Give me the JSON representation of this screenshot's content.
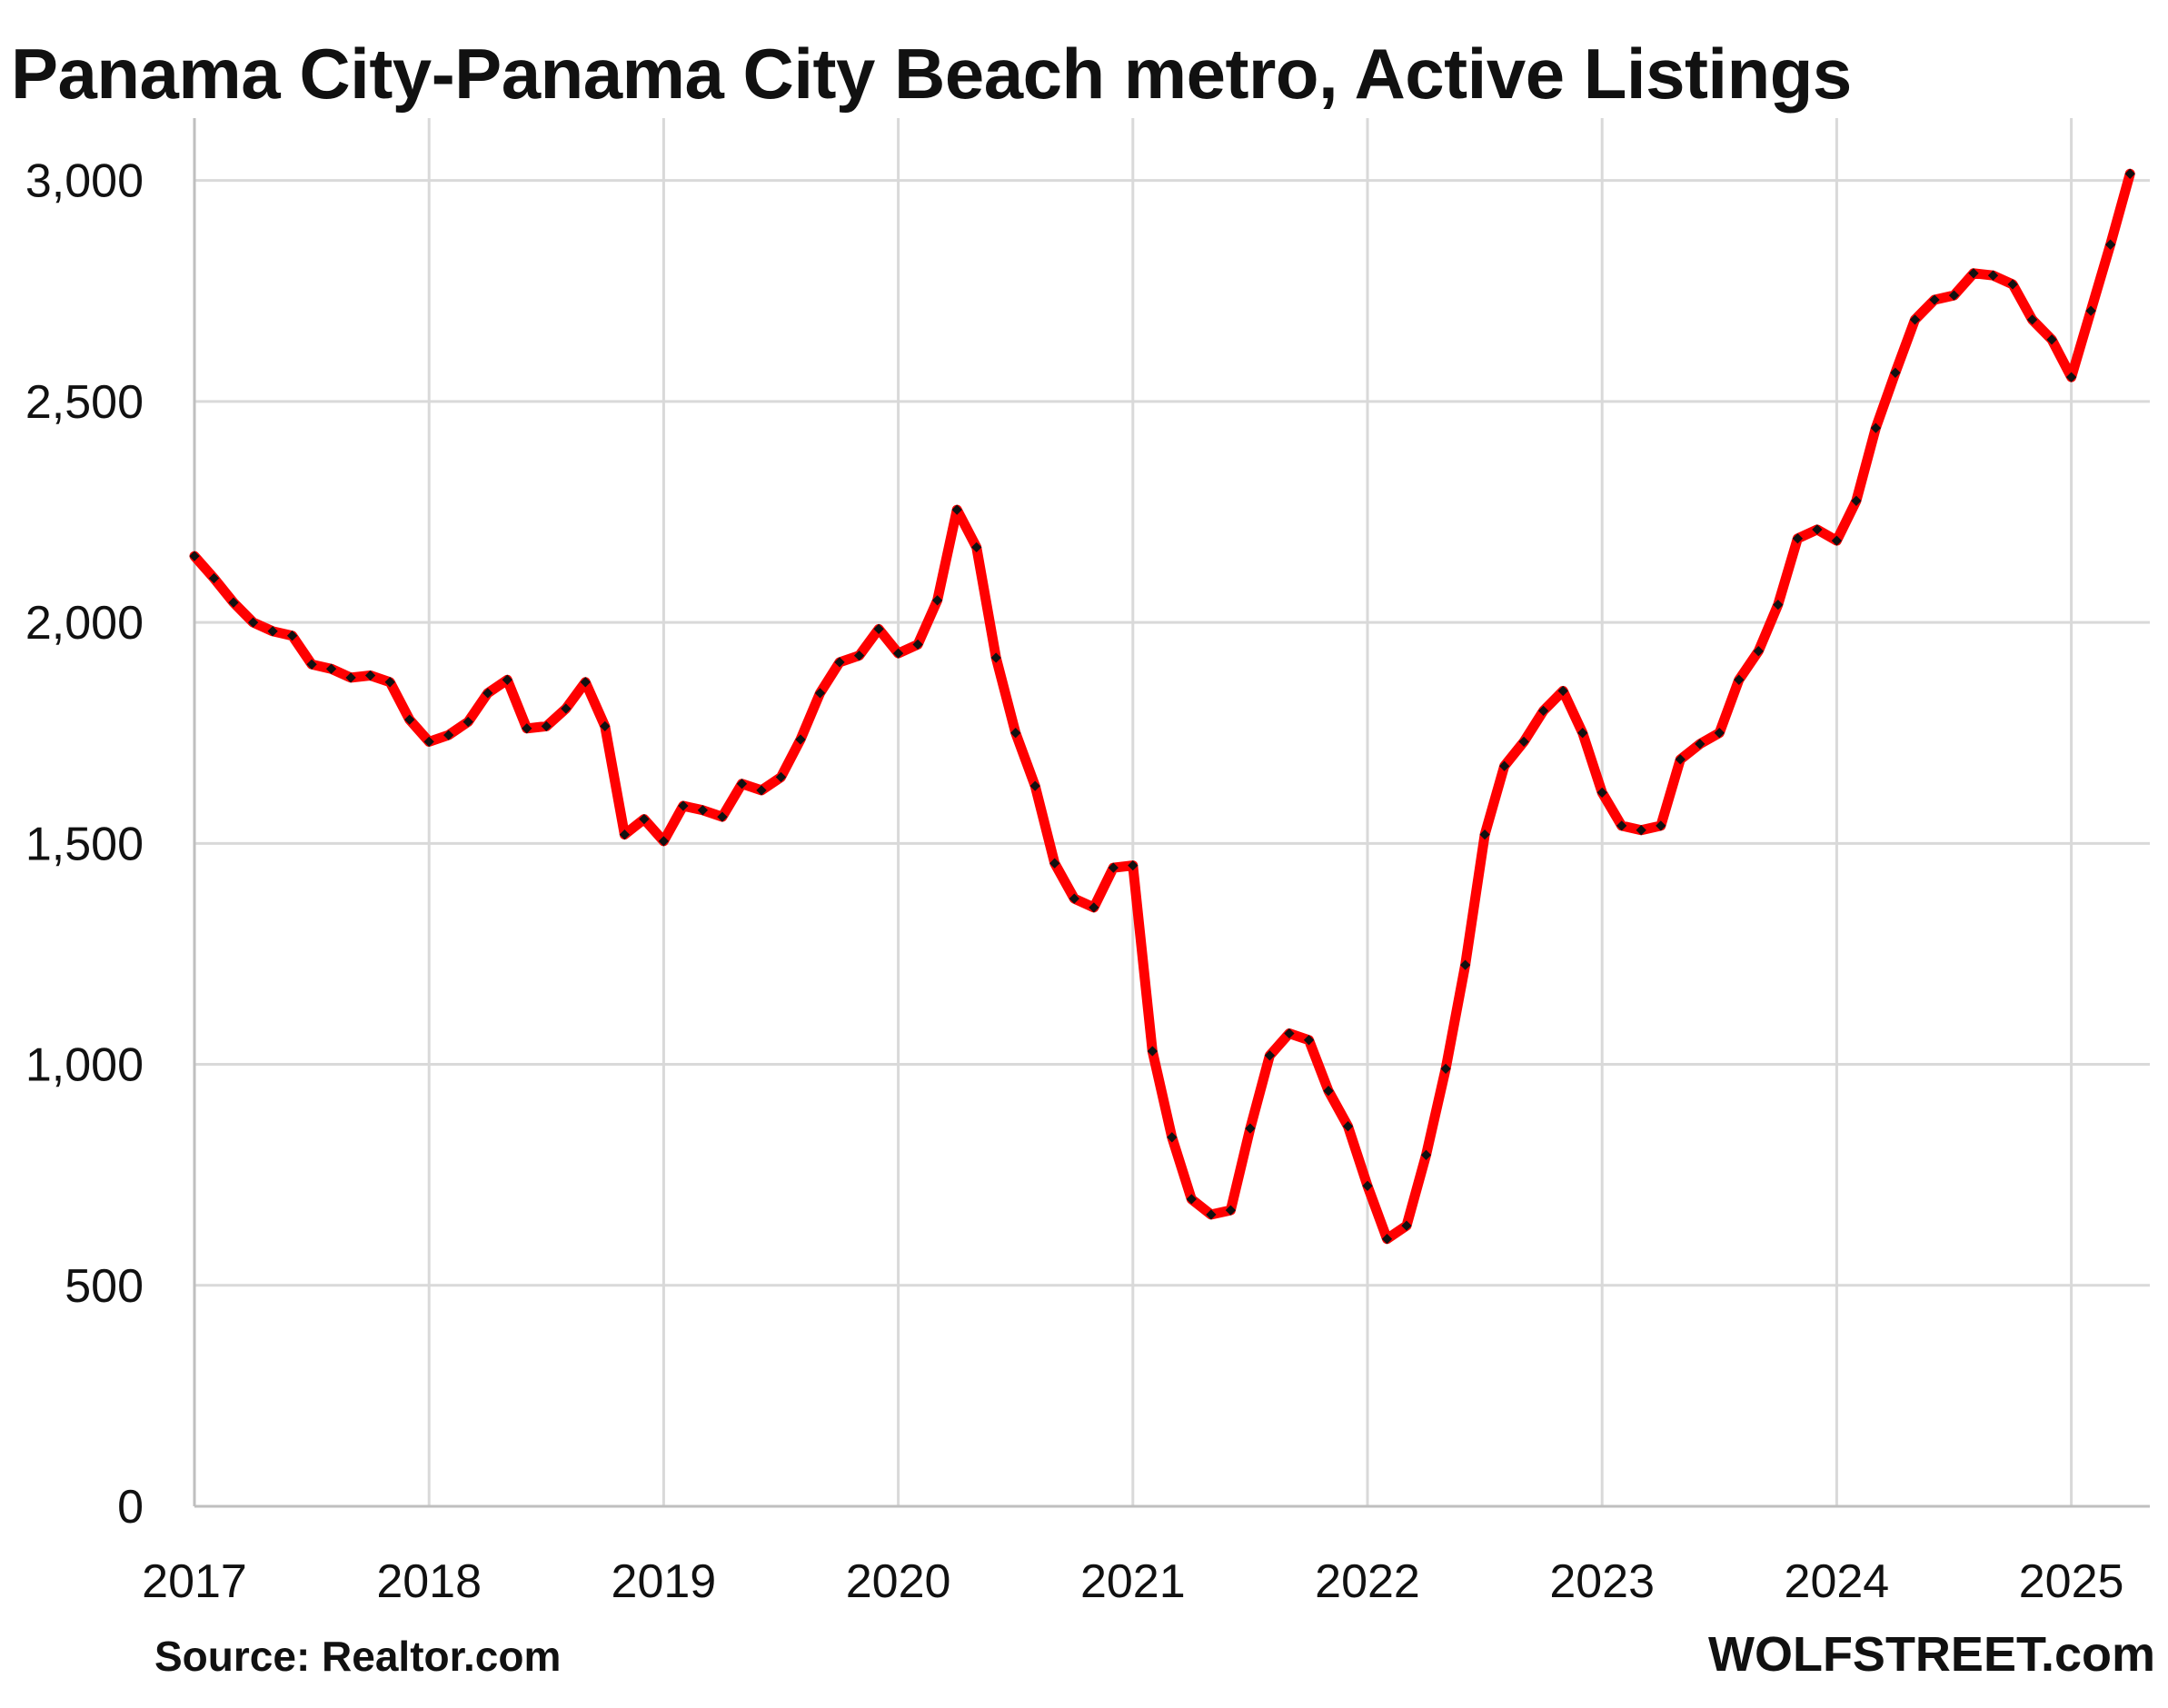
{
  "chart_data": {
    "type": "line",
    "title": "Panama City-Panama City Beach metro, Active Listings",
    "xlabel": "",
    "ylabel": "",
    "source": "Source: Realtor.com",
    "brand": "WOLFSTREET.com",
    "ylim": [
      0,
      3100
    ],
    "y_ticks": [
      0,
      500,
      1000,
      1500,
      2000,
      2500,
      3000
    ],
    "y_tick_labels": [
      "0",
      "500",
      "1,000",
      "1,500",
      "2,000",
      "2,500",
      "3,000"
    ],
    "x_ticks": [
      "2017",
      "2018",
      "2019",
      "2020",
      "2021",
      "2022",
      "2023",
      "2024",
      "2025"
    ],
    "grid": true,
    "legend": "none",
    "colors": {
      "line": "#ff0000",
      "markers": "#111111",
      "grid": "#d9d9d9",
      "axis": "#bfbfbf"
    },
    "series": [
      {
        "start": "2017-01",
        "frequency": "monthly",
        "values": [
          2150,
          2100,
          2045,
          2000,
          1980,
          1970,
          1905,
          1895,
          1875,
          1880,
          1865,
          1780,
          1730,
          1745,
          1775,
          1840,
          1870,
          1760,
          1765,
          1805,
          1865,
          1765,
          1520,
          1555,
          1505,
          1585,
          1575,
          1560,
          1635,
          1620,
          1650,
          1735,
          1840,
          1910,
          1925,
          1985,
          1930,
          1950,
          2050,
          2255,
          2170,
          1920,
          1750,
          1630,
          1455,
          1375,
          1355,
          1445,
          1450,
          1030,
          835,
          695,
          660,
          670,
          855,
          1020,
          1070,
          1055,
          940,
          860,
          725,
          605,
          635,
          795,
          990,
          1225,
          1520,
          1675,
          1730,
          1800,
          1845,
          1750,
          1615,
          1540,
          1530,
          1540,
          1690,
          1725,
          1750,
          1870,
          1935,
          2040,
          2190,
          2210,
          2185,
          2275,
          2440,
          2565,
          2685,
          2730,
          2740,
          2790,
          2785,
          2765,
          2685,
          2640,
          2555,
          2705,
          2855,
          3015
        ]
      }
    ]
  }
}
